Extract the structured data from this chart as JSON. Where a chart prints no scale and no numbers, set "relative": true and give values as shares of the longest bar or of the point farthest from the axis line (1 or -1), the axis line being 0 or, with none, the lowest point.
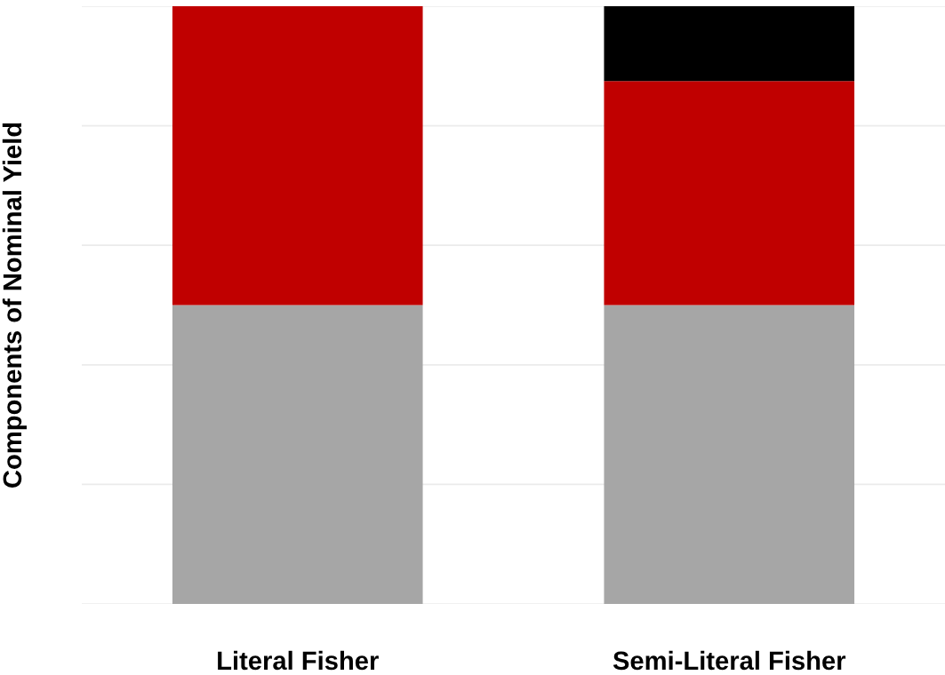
{
  "chart_data": {
    "type": "bar",
    "stacked": true,
    "relative": true,
    "ylabel": "Components of Nominal Yield",
    "categories": [
      "Literal Fisher",
      "Semi-Literal Fisher"
    ],
    "series": [
      {
        "color": "#a6a6a6",
        "values": [
          0.5,
          0.5
        ]
      },
      {
        "color": "#c00000",
        "values": [
          0.5,
          0.375
        ]
      },
      {
        "color": "#000000",
        "values": [
          0,
          0.125
        ]
      }
    ],
    "grid": "y"
  }
}
